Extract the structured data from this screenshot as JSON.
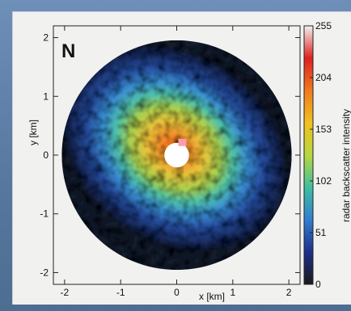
{
  "chart_data": {
    "type": "heatmap",
    "description_marker": "N",
    "xlabel": "x [km]",
    "ylabel": "y [km]",
    "xlim": [
      -2.2,
      2.2
    ],
    "ylim": [
      -2.2,
      2.2
    ],
    "x_ticks": [
      -2,
      -1,
      0,
      1,
      2
    ],
    "y_ticks": [
      -2,
      -1,
      0,
      1,
      2
    ],
    "radar_range_outer_km": 2.05,
    "radar_range_inner_km": 0.22,
    "colorbar": {
      "label": "radar backscatter intensity",
      "min": 0,
      "max": 255,
      "ticks": [
        0,
        51,
        102,
        153,
        204,
        255
      ],
      "colors": [
        "#1a1a1a",
        "#1f2f8c",
        "#2f7fd0",
        "#3fbf9f",
        "#b8d640",
        "#f0c020",
        "#f07a20",
        "#e02020",
        "#f2f2f2"
      ]
    },
    "intensity_peak_location_km": [
      -0.1,
      0.1
    ],
    "intensity_peak_value": 220,
    "intensity_falloff_direction": "towards upper-right and lower-left edges"
  }
}
